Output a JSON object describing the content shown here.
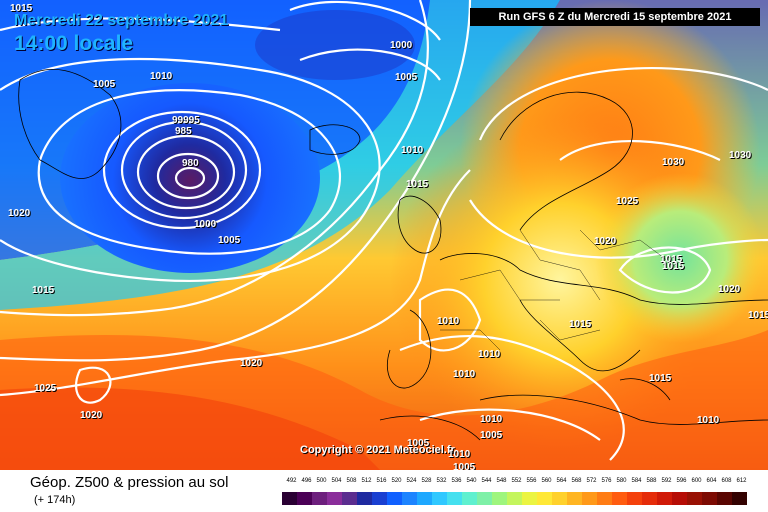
{
  "header": {
    "date": "Mercredi 22 septembre 2021",
    "time": "14:00 locale",
    "run": "Run GFS 6 Z du Mercredi 15 septembre 2021"
  },
  "copyright": "Copyright © 2021 Meteociel.fr",
  "footer": {
    "product": "Géop. Z500 & pression au sol",
    "lead": "(+ 174h)"
  },
  "scale": {
    "labels": [
      "492",
      "496",
      "500",
      "504",
      "508",
      "512",
      "516",
      "520",
      "524",
      "528",
      "532",
      "536",
      "540",
      "544",
      "548",
      "552",
      "556",
      "560",
      "564",
      "568",
      "572",
      "576",
      "580",
      "584",
      "588",
      "592",
      "596",
      "600",
      "604",
      "608",
      "612"
    ],
    "colors": [
      "#2a0033",
      "#4b0056",
      "#6d1f7d",
      "#8a2d9a",
      "#5b2d8f",
      "#1f2aa0",
      "#1a3fd1",
      "#1060ff",
      "#1d84ff",
      "#1ea8ff",
      "#30c8ff",
      "#45e0ef",
      "#5ff0cf",
      "#7ef0a7",
      "#9ef57d",
      "#c4f55d",
      "#ebf442",
      "#ffe837",
      "#ffd12c",
      "#ffb522",
      "#ff9919",
      "#ff7c14",
      "#ff5c10",
      "#f4410c",
      "#e52c0a",
      "#d01a08",
      "#b60d06",
      "#991104",
      "#7d0b03",
      "#5a0602",
      "#330201"
    ]
  },
  "isobars": [
    {
      "label": "1015",
      "placement": "a"
    },
    {
      "label": "1010",
      "placement": "b"
    },
    {
      "label": "1005",
      "placement": "c"
    },
    {
      "label": "1000",
      "placement": "d"
    },
    {
      "label": "1005",
      "placement": "e"
    },
    {
      "label": "99995",
      "placement": "f"
    },
    {
      "label": "985",
      "placement": "g"
    },
    {
      "label": "980",
      "placement": "h"
    },
    {
      "label": "1000",
      "placement": "i"
    },
    {
      "label": "1005",
      "placement": "j"
    },
    {
      "label": "1020",
      "placement": "k"
    },
    {
      "label": "1010",
      "placement": "l"
    },
    {
      "label": "1015",
      "placement": "m"
    },
    {
      "label": "1030",
      "placement": "n"
    },
    {
      "label": "1030",
      "placement": "o"
    },
    {
      "label": "1025",
      "placement": "p"
    },
    {
      "label": "1020",
      "placement": "q"
    },
    {
      "label": "1015",
      "placement": "r"
    },
    {
      "label": "1015",
      "placement": "s"
    },
    {
      "label": "1020",
      "placement": "t"
    },
    {
      "label": "1015",
      "placement": "u"
    },
    {
      "label": "1010",
      "placement": "v"
    },
    {
      "label": "1010",
      "placement": "w"
    },
    {
      "label": "1010",
      "placement": "x"
    },
    {
      "label": "1015",
      "placement": "y"
    },
    {
      "label": "1020",
      "placement": "z"
    },
    {
      "label": "1025",
      "placement": "aa"
    },
    {
      "label": "1020",
      "placement": "ab"
    },
    {
      "label": "1015",
      "placement": "ac"
    },
    {
      "label": "1005",
      "placement": "ad"
    },
    {
      "label": "1005",
      "placement": "ae"
    },
    {
      "label": "1010",
      "placement": "af"
    },
    {
      "label": "1015",
      "placement": "ag"
    },
    {
      "label": "1010",
      "placement": "ah"
    },
    {
      "label": "1010",
      "placement": "ai"
    },
    {
      "label": "1005",
      "placement": "aj"
    }
  ]
}
